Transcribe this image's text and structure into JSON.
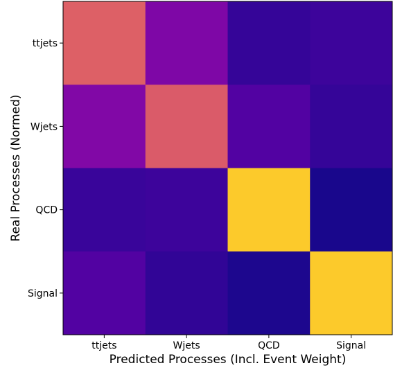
{
  "chart_data": {
    "type": "heatmap",
    "title": "",
    "xlabel": "Predicted Processes (Incl. Event Weight)",
    "ylabel": "Real Processes (Normed)",
    "x_categories": [
      "ttjets",
      "Wjets",
      "QCD",
      "Signal"
    ],
    "y_categories": [
      "ttjets",
      "Wjets",
      "QCD",
      "Signal"
    ],
    "colormap": "plasma",
    "vrange": [
      0,
      1
    ],
    "values": [
      [
        0.62,
        0.32,
        0.1,
        0.12
      ],
      [
        0.33,
        0.61,
        0.18,
        0.1
      ],
      [
        0.11,
        0.12,
        0.85,
        0.03
      ],
      [
        0.18,
        0.09,
        0.04,
        0.85
      ]
    ]
  }
}
